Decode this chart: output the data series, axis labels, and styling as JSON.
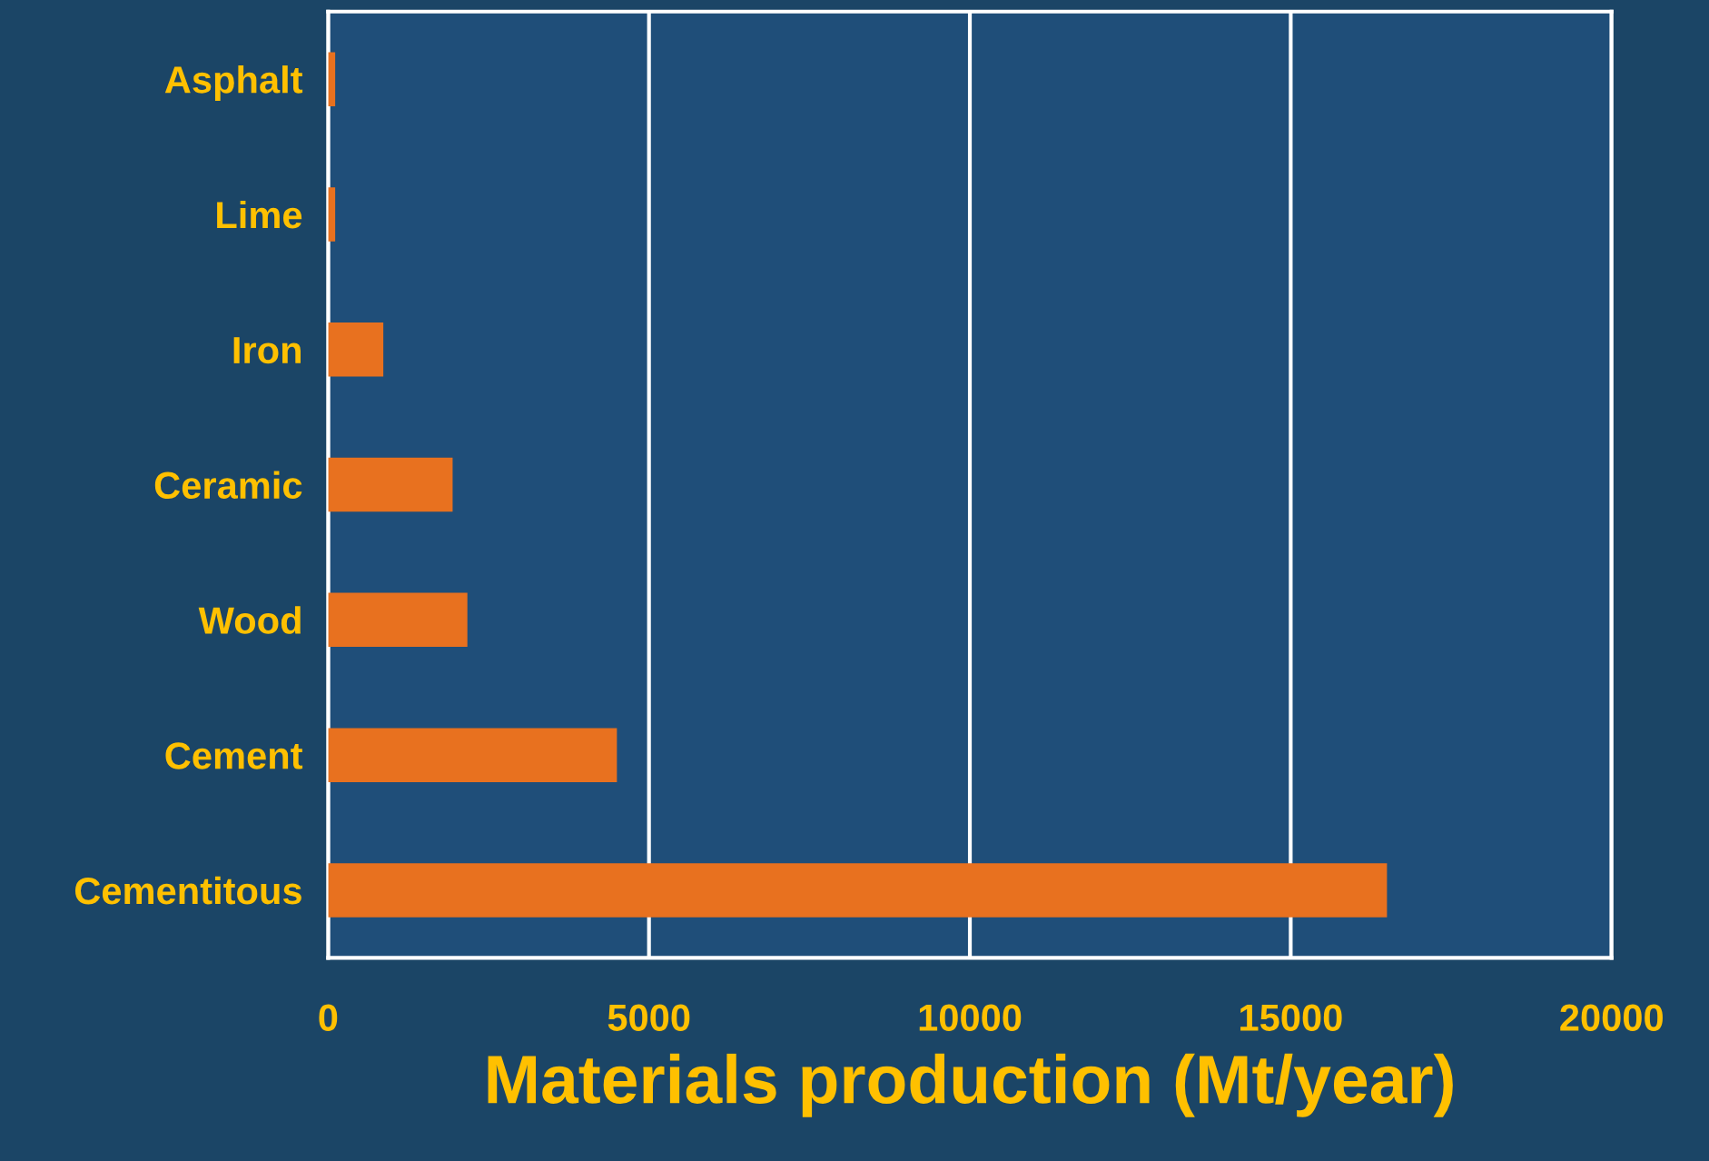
{
  "chart_data": {
    "type": "bar",
    "orientation": "horizontal",
    "categories": [
      "Asphalt",
      "Lime",
      "Iron",
      "Ceramic",
      "Wood",
      "Cement",
      "Cementitous"
    ],
    "values": [
      110,
      110,
      860,
      1940,
      2170,
      4500,
      16500
    ],
    "color": "#e8711f",
    "xlabel": "Materials production (Mt/year)",
    "xlim": [
      0,
      20000
    ],
    "xticks": [
      0,
      5000,
      10000,
      15000,
      20000
    ],
    "grid": "x",
    "legend": false
  }
}
